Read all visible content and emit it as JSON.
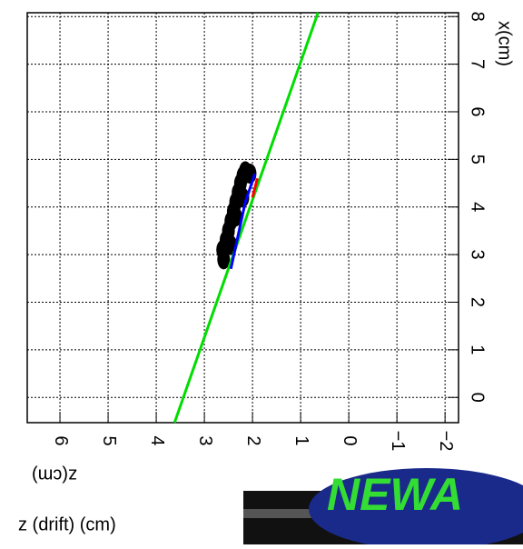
{
  "chart_data": {
    "type": "line",
    "xlabel": "z(cm)",
    "ylabel": "x(cm)",
    "xlim": [
      6.68,
      -2.28
    ],
    "ylim": [
      -0.53,
      8.08
    ],
    "xticks": [
      6,
      5,
      4,
      3,
      2,
      1,
      0,
      {
        "value": -1,
        "label": "−1"
      },
      {
        "value": -2,
        "label": "−2"
      }
    ],
    "yticks": [
      0,
      1,
      2,
      3,
      4,
      5,
      6,
      7,
      8
    ],
    "grid": true,
    "points": {
      "color": "#000000",
      "x": [
        2.6,
        2.62,
        2.55,
        2.5,
        2.45,
        2.4,
        2.35,
        2.3,
        2.25,
        2.2,
        2.15,
        2.05,
        2.45,
        2.35,
        2.2
      ],
      "values": [
        2.9,
        3.1,
        3.3,
        3.5,
        3.7,
        3.9,
        4.1,
        4.3,
        4.5,
        4.65,
        4.75,
        4.7,
        3.2,
        3.8,
        4.2
      ]
    },
    "series": [
      {
        "color": "#00dd00",
        "x": [
          3.62,
          0.64
        ],
        "values": [
          -0.53,
          8.08
        ]
      },
      {
        "color": "#0000ff",
        "x": [
          2.45,
          2.3,
          2.15,
          1.95
        ],
        "values": [
          2.7,
          3.4,
          4.1,
          4.7
        ]
      },
      {
        "color": "#ff0000",
        "x": [
          2.0,
          1.9
        ],
        "values": [
          4.2,
          4.6
        ]
      }
    ],
    "caption": "z (drift) (cm)",
    "banner": "NEWA"
  }
}
